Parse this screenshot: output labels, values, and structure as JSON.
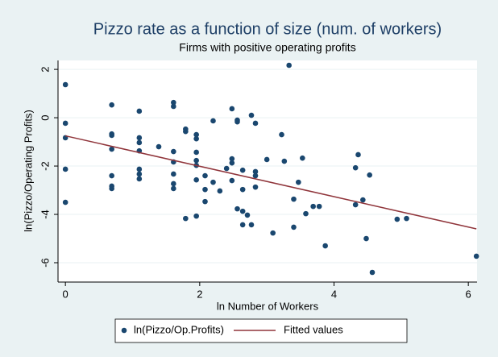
{
  "chart_data": {
    "type": "scatter",
    "title": "Pizzo rate as a function of size (num. of workers)",
    "subtitle": "Firms with positive operating profits",
    "x_label": "ln Number of Workers",
    "y_label": "ln(Pizzo/Operating Profits)",
    "xlim": [
      -0.11,
      6.13
    ],
    "xticks": [
      0,
      2,
      4,
      6
    ],
    "ylim": [
      -6.8,
      2.37
    ],
    "yticks": [
      2,
      0,
      -2,
      -4,
      -6
    ],
    "grid": true,
    "legend": "bottom",
    "series": [
      {
        "name": "ln(Pizzo/Op.Profits)",
        "type": "scatter",
        "color": "#1a476f",
        "x": [
          0,
          0,
          0,
          0,
          0,
          0.69,
          0.69,
          0.69,
          0.69,
          0.69,
          0.69,
          0.69,
          1.1,
          1.1,
          1.1,
          1.1,
          1.1,
          1.1,
          1.1,
          1.39,
          1.61,
          1.61,
          1.61,
          1.61,
          1.61,
          1.61,
          1.61,
          1.79,
          1.79,
          1.79,
          1.95,
          1.95,
          1.95,
          1.95,
          1.95,
          1.95,
          1.95,
          2.08,
          2.08,
          2.08,
          2.2,
          2.2,
          2.3,
          2.4,
          2.48,
          2.48,
          2.48,
          2.48,
          2.56,
          2.56,
          2.56,
          2.64,
          2.64,
          2.64,
          2.64,
          2.71,
          2.77,
          2.77,
          2.83,
          2.83,
          2.83,
          2.83,
          3.0,
          3.09,
          3.22,
          3.26,
          3.33,
          3.4,
          3.4,
          3.47,
          3.53,
          3.58,
          3.69,
          3.78,
          3.87,
          4.32,
          4.32,
          4.36,
          4.43,
          4.48,
          4.53,
          4.57,
          4.94,
          5.08,
          6.12
        ],
        "values": [
          1.37,
          -0.23,
          -0.83,
          -2.13,
          -3.5,
          0.53,
          -0.67,
          -0.73,
          -1.3,
          -2.4,
          -2.83,
          -2.93,
          0.27,
          -0.83,
          -1.03,
          -1.37,
          -2.13,
          -2.33,
          -2.53,
          -1.2,
          0.63,
          0.47,
          -1.4,
          -1.83,
          -2.33,
          -2.73,
          -2.93,
          -0.47,
          -0.57,
          -4.17,
          -0.7,
          -0.87,
          -1.43,
          -1.77,
          -1.97,
          -2.57,
          -4.07,
          -2.4,
          -2.97,
          -3.47,
          -0.13,
          -2.67,
          -3.03,
          -2.1,
          0.37,
          -1.7,
          -1.87,
          -2.6,
          -0.1,
          -0.17,
          -3.77,
          -2.17,
          -2.97,
          -3.87,
          -4.43,
          -4.03,
          0.1,
          -4.43,
          -0.23,
          -2.23,
          -2.4,
          -2.87,
          -1.73,
          -4.77,
          -0.7,
          -1.8,
          2.17,
          -3.37,
          -4.53,
          -2.67,
          -1.67,
          -3.97,
          -3.67,
          -3.67,
          -5.3,
          -2.07,
          -3.6,
          -1.53,
          -3.4,
          -5.0,
          -2.37,
          -6.4,
          -4.2,
          -4.17,
          -5.73
        ]
      },
      {
        "name": "Fitted values",
        "type": "line",
        "color": "#90353b",
        "x": [
          0,
          6.12
        ],
        "values": [
          -0.75,
          -4.6
        ]
      }
    ]
  }
}
